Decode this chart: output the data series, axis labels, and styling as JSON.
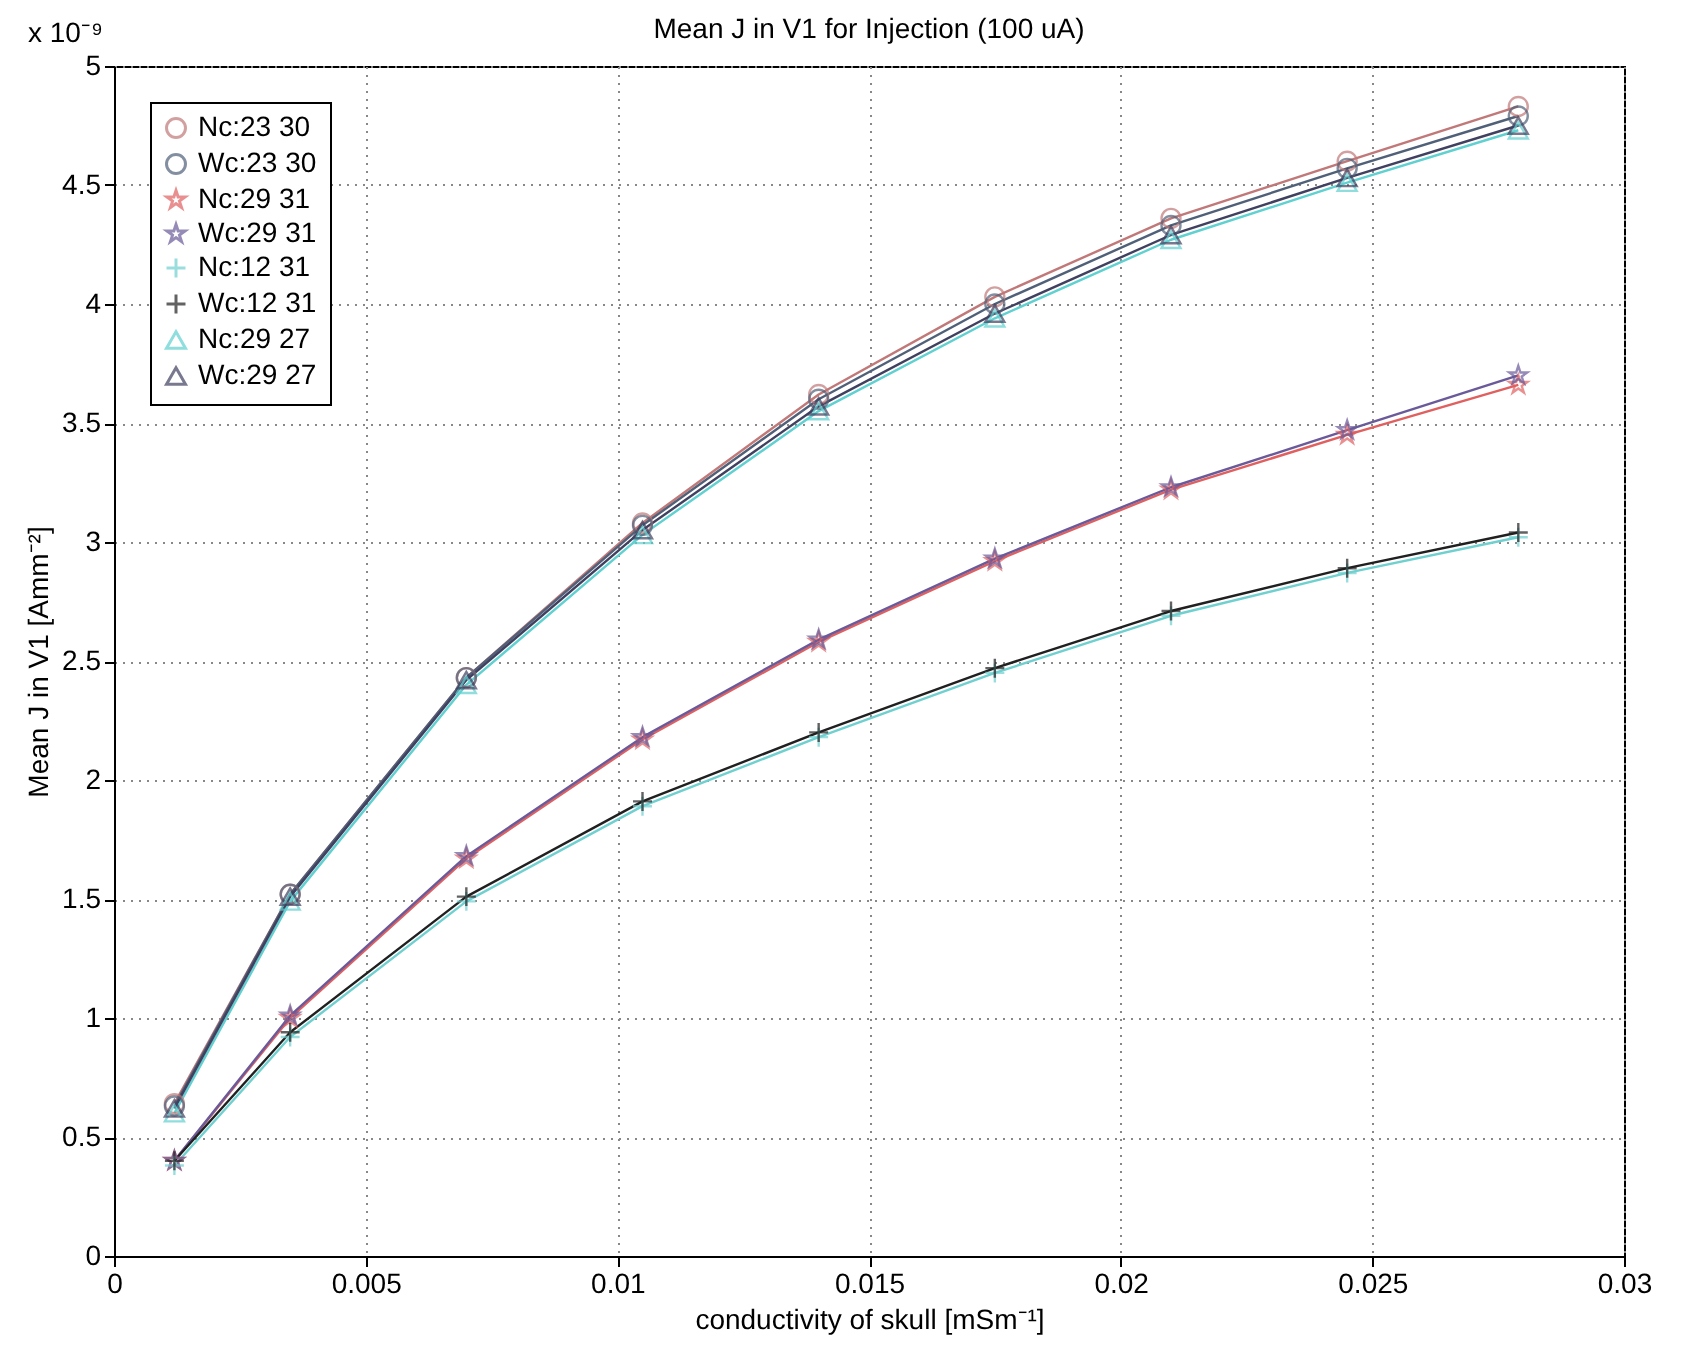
{
  "chart_data": {
    "type": "line",
    "title": "Mean J in V1 for Injection (100 uA)",
    "xlabel": "conductivity of skull [mSm⁻¹]",
    "ylabel": "Mean J in V1 [Amm⁻²]",
    "annotations": [
      "x 10⁻⁹"
    ],
    "x": [
      0.0012,
      0.0035,
      0.007,
      0.0105,
      0.014,
      0.0175,
      0.021,
      0.0245,
      0.0279
    ],
    "series": [
      {
        "name": "Nc:23 30",
        "color": "#c07878",
        "marker": "circle",
        "values": [
          0.64,
          1.52,
          2.43,
          3.08,
          3.62,
          4.03,
          4.36,
          4.6,
          4.83
        ]
      },
      {
        "name": "Wc:23 30",
        "color": "#506078",
        "marker": "circle",
        "values": [
          0.63,
          1.52,
          2.43,
          3.07,
          3.6,
          4.0,
          4.33,
          4.57,
          4.79
        ]
      },
      {
        "name": "Nc:29 31",
        "color": "#e06060",
        "marker": "star",
        "values": [
          0.4,
          1.0,
          1.67,
          2.17,
          2.58,
          2.92,
          3.22,
          3.45,
          3.66
        ]
      },
      {
        "name": "Wc:29 31",
        "color": "#6a5a9a",
        "marker": "star",
        "values": [
          0.4,
          1.01,
          1.68,
          2.18,
          2.59,
          2.93,
          3.23,
          3.47,
          3.7
        ]
      },
      {
        "name": "Nc:12 31",
        "color": "#70d0d0",
        "marker": "cross",
        "values": [
          0.38,
          0.92,
          1.49,
          1.89,
          2.18,
          2.45,
          2.69,
          2.87,
          3.02
        ]
      },
      {
        "name": "Wc:12 31",
        "color": "#202020",
        "marker": "cross",
        "values": [
          0.4,
          0.94,
          1.51,
          1.91,
          2.2,
          2.47,
          2.71,
          2.89,
          3.04
        ]
      },
      {
        "name": "Nc:29 27",
        "color": "#60d0d0",
        "marker": "triangle",
        "values": [
          0.6,
          1.49,
          2.4,
          3.03,
          3.55,
          3.94,
          4.27,
          4.51,
          4.73
        ]
      },
      {
        "name": "Wc:29 27",
        "color": "#404060",
        "marker": "triangle",
        "values": [
          0.62,
          1.51,
          2.42,
          3.05,
          3.57,
          3.96,
          4.29,
          4.53,
          4.75
        ]
      }
    ],
    "xlim": [
      0,
      0.03
    ],
    "xticks": [
      0,
      0.005,
      0.01,
      0.015,
      0.02,
      0.025,
      0.03
    ],
    "ylim": [
      0,
      5
    ],
    "yticks": [
      0,
      0.5,
      1,
      1.5,
      2,
      2.5,
      3,
      3.5,
      4,
      4.5,
      5
    ],
    "grid": true,
    "legend": "top left",
    "line_style": "solid"
  }
}
